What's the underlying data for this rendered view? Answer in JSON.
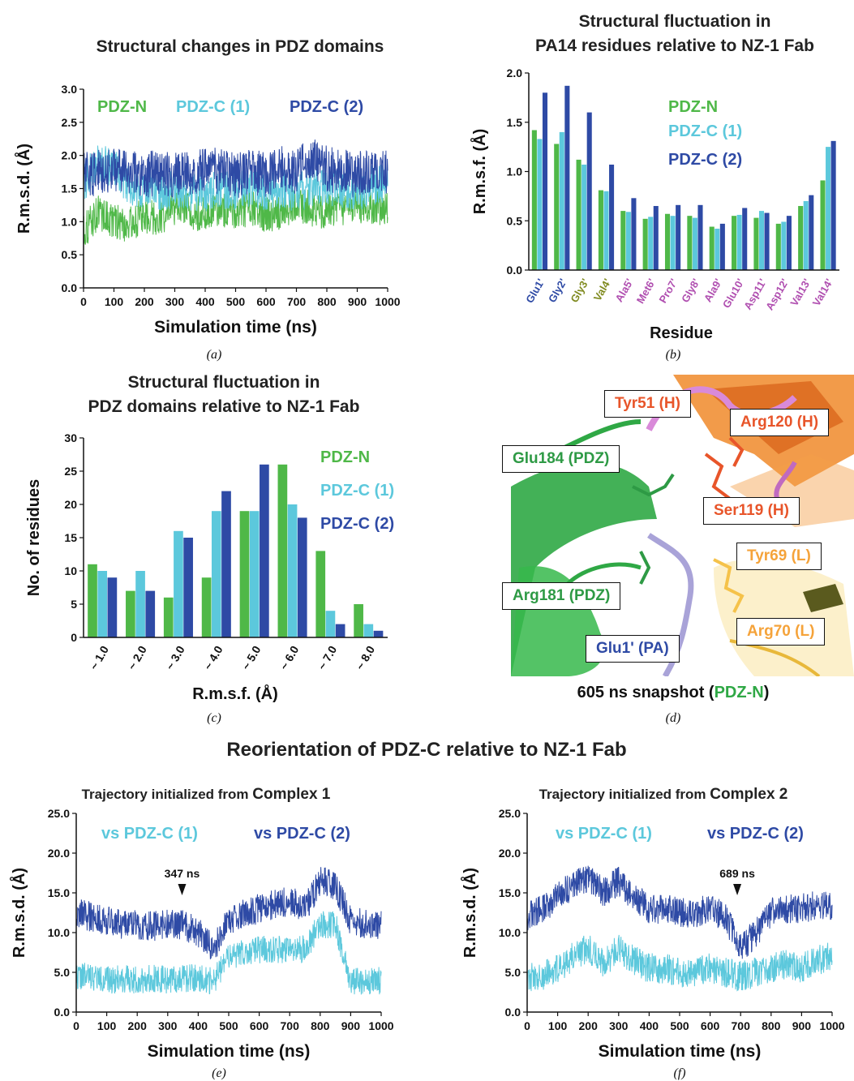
{
  "colors": {
    "pdzn": "#4fb848",
    "pdzc1": "#5cc8dc",
    "pdzc2": "#2e4aa5",
    "heavy": "#e8552a",
    "light": "#f5a33a",
    "pa_blue": "#2e4aa5",
    "pa_olive": "#7f8a1f",
    "pa_magenta": "#b04fb0"
  },
  "panel_captions": [
    "(a)",
    "(b)",
    "(c)",
    "(d)",
    "(e)",
    "(f)"
  ],
  "section_title": "Reorientation of PDZ-C relative to NZ-1 Fab",
  "chart_data": [
    {
      "id": "a",
      "type": "line",
      "title": "Structural changes in PDZ domains",
      "xlabel": "Simulation time (ns)",
      "ylabel": "R.m.s.d. (Å)",
      "xlim": [
        0,
        1000
      ],
      "ylim": [
        0,
        3
      ],
      "xticks": [
        0,
        100,
        200,
        300,
        400,
        500,
        600,
        700,
        800,
        900,
        1000
      ],
      "yticks": [
        "0.0",
        "0.5",
        "1.0",
        "1.5",
        "2.0",
        "2.5",
        "3.0"
      ],
      "legend_position": "top",
      "series": [
        {
          "name": "PDZ-N",
          "color": "#4fb848",
          "x": [
            0,
            50,
            100,
            150,
            200,
            250,
            300,
            350,
            400,
            450,
            500,
            550,
            600,
            650,
            700,
            750,
            800,
            850,
            900,
            950,
            1000
          ],
          "y": [
            0.85,
            1.15,
            1.0,
            0.95,
            1.1,
            1.05,
            1.2,
            1.15,
            1.1,
            1.2,
            1.15,
            1.2,
            1.1,
            1.15,
            1.25,
            1.2,
            1.15,
            1.2,
            1.25,
            1.2,
            1.2
          ]
        },
        {
          "name": "PDZ-C (1)",
          "color": "#5cc8dc",
          "x": [
            0,
            50,
            100,
            150,
            200,
            250,
            300,
            350,
            400,
            450,
            500,
            550,
            600,
            650,
            700,
            750,
            800,
            850,
            900,
            950,
            1000
          ],
          "y": [
            1.6,
            1.9,
            1.8,
            1.55,
            1.5,
            1.45,
            1.5,
            1.45,
            1.45,
            1.5,
            1.45,
            1.5,
            1.45,
            1.5,
            1.45,
            1.5,
            1.55,
            1.5,
            1.45,
            1.55,
            1.6
          ]
        },
        {
          "name": "PDZ-C (2)",
          "color": "#2e4aa5",
          "x": [
            0,
            50,
            100,
            150,
            200,
            250,
            300,
            350,
            400,
            450,
            500,
            550,
            600,
            650,
            700,
            750,
            800,
            850,
            900,
            950,
            1000
          ],
          "y": [
            1.7,
            1.75,
            1.8,
            1.75,
            1.7,
            1.75,
            1.7,
            1.75,
            1.8,
            1.75,
            1.7,
            1.75,
            1.7,
            1.8,
            1.75,
            2.0,
            1.8,
            1.75,
            1.7,
            1.8,
            1.75
          ]
        }
      ]
    },
    {
      "id": "b",
      "type": "bar",
      "title": "Structural fluctuation in\nPA14 residues relative to NZ-1 Fab",
      "xlabel": "Residue",
      "ylabel": "R.m.s.f. (Å)",
      "ylim": [
        0,
        2
      ],
      "yticks": [
        "0.0",
        "0.5",
        "1.0",
        "1.5",
        "2.0"
      ],
      "categories": [
        "Glu1'",
        "Gly2'",
        "Gly3'",
        "Val4'",
        "Ala5'",
        "Met6'",
        "Pro7'",
        "Gly8'",
        "Ala9'",
        "Glu10'",
        "Asp11'",
        "Asp12'",
        "Val13'",
        "Val14'"
      ],
      "category_colors": [
        "#2e4aa5",
        "#2e4aa5",
        "#7f8a1f",
        "#7f8a1f",
        "#b04fb0",
        "#b04fb0",
        "#b04fb0",
        "#b04fb0",
        "#b04fb0",
        "#b04fb0",
        "#b04fb0",
        "#b04fb0",
        "#b04fb0",
        "#b04fb0"
      ],
      "legend_position": "upper-center",
      "series": [
        {
          "name": "PDZ-N",
          "color": "#4fb848",
          "values": [
            1.42,
            1.28,
            1.12,
            0.81,
            0.6,
            0.52,
            0.57,
            0.55,
            0.44,
            0.55,
            0.53,
            0.47,
            0.65,
            0.91
          ]
        },
        {
          "name": "PDZ-C (1)",
          "color": "#5cc8dc",
          "values": [
            1.33,
            1.4,
            1.07,
            0.8,
            0.59,
            0.54,
            0.55,
            0.53,
            0.42,
            0.56,
            0.6,
            0.49,
            0.7,
            1.25
          ]
        },
        {
          "name": "PDZ-C (2)",
          "color": "#2e4aa5",
          "values": [
            1.8,
            1.87,
            1.6,
            1.07,
            0.73,
            0.65,
            0.66,
            0.66,
            0.47,
            0.63,
            0.58,
            0.55,
            0.76,
            1.31
          ]
        }
      ]
    },
    {
      "id": "c",
      "type": "bar",
      "title": "Structural fluctuation in\nPDZ domains relative to NZ-1 Fab",
      "xlabel": "R.m.s.f. (Å)",
      "ylabel": "No. of residues",
      "ylim": [
        0,
        30
      ],
      "yticks": [
        "0",
        "5",
        "10",
        "15",
        "20",
        "25",
        "30"
      ],
      "categories": [
        "~ 1.0",
        "~ 2.0",
        "~ 3.0",
        "~ 4.0",
        "~ 5.0",
        "~ 6.0",
        "~ 7.0",
        "~ 8.0"
      ],
      "legend_position": "right",
      "series": [
        {
          "name": "PDZ-N",
          "color": "#4fb848",
          "values": [
            11,
            7,
            6,
            9,
            19,
            26,
            13,
            5
          ]
        },
        {
          "name": "PDZ-C (1)",
          "color": "#5cc8dc",
          "values": [
            10,
            10,
            16,
            19,
            19,
            20,
            4,
            2
          ]
        },
        {
          "name": "PDZ-C (2)",
          "color": "#2e4aa5",
          "values": [
            9,
            7,
            15,
            22,
            26,
            18,
            2,
            1
          ]
        }
      ]
    },
    {
      "id": "e",
      "type": "line",
      "title_prefix": "Trajectory initialized from ",
      "title_emph": "Complex 1",
      "xlabel": "Simulation time (ns)",
      "ylabel": "R.m.s.d. (Å)",
      "xlim": [
        0,
        1000
      ],
      "ylim": [
        0,
        25
      ],
      "xticks": [
        0,
        100,
        200,
        300,
        400,
        500,
        600,
        700,
        800,
        900,
        1000
      ],
      "yticks": [
        "0.0",
        "5.0",
        "10.0",
        "15.0",
        "20.0",
        "25.0"
      ],
      "annotation": {
        "text": "347 ns",
        "x": 347
      },
      "legend_position": "top",
      "series": [
        {
          "name": "vs PDZ-C (1)",
          "color": "#5cc8dc",
          "x": [
            0,
            50,
            100,
            150,
            200,
            250,
            300,
            350,
            400,
            450,
            500,
            550,
            600,
            650,
            700,
            750,
            800,
            850,
            900,
            950,
            1000
          ],
          "y": [
            4.5,
            4.5,
            4.0,
            4.2,
            4.0,
            4.3,
            4.0,
            4.2,
            4.3,
            3.8,
            7.0,
            7.5,
            7.8,
            8.0,
            7.5,
            8.0,
            11.0,
            11.0,
            4.0,
            3.8,
            4.0
          ]
        },
        {
          "name": "vs PDZ-C (2)",
          "color": "#2e4aa5",
          "x": [
            0,
            50,
            100,
            150,
            200,
            250,
            300,
            350,
            400,
            450,
            500,
            550,
            600,
            650,
            700,
            750,
            800,
            850,
            900,
            950,
            1000
          ],
          "y": [
            12.5,
            12.0,
            11.5,
            11.0,
            11.0,
            10.8,
            11.0,
            11.0,
            10.0,
            8.0,
            11.5,
            12.5,
            13.0,
            13.5,
            14.0,
            13.0,
            16.5,
            16.0,
            11.5,
            11.0,
            11.0
          ]
        }
      ]
    },
    {
      "id": "f",
      "type": "line",
      "title_prefix": "Trajectory initialized from ",
      "title_emph": "Complex 2",
      "xlabel": "Simulation time (ns)",
      "ylabel": "R.m.s.d. (Å)",
      "xlim": [
        0,
        1000
      ],
      "ylim": [
        0,
        25
      ],
      "xticks": [
        0,
        100,
        200,
        300,
        400,
        500,
        600,
        700,
        800,
        900,
        1000
      ],
      "yticks": [
        "0.0",
        "5.0",
        "10.0",
        "15.0",
        "20.0",
        "25.0"
      ],
      "annotation": {
        "text": "689 ns",
        "x": 689
      },
      "legend_position": "top",
      "series": [
        {
          "name": "vs PDZ-C (1)",
          "color": "#5cc8dc",
          "x": [
            0,
            50,
            100,
            150,
            200,
            250,
            300,
            350,
            400,
            450,
            500,
            550,
            600,
            650,
            700,
            750,
            800,
            850,
            900,
            950,
            1000
          ],
          "y": [
            4.5,
            4.5,
            5.5,
            7.0,
            8.0,
            6.0,
            8.0,
            6.5,
            5.5,
            5.5,
            5.0,
            5.0,
            5.5,
            5.0,
            4.5,
            5.0,
            5.5,
            6.0,
            5.5,
            6.5,
            7.0
          ]
        },
        {
          "name": "vs PDZ-C (2)",
          "color": "#2e4aa5",
          "x": [
            0,
            50,
            100,
            150,
            200,
            250,
            300,
            350,
            400,
            450,
            500,
            550,
            600,
            650,
            700,
            750,
            800,
            850,
            900,
            950,
            1000
          ],
          "y": [
            12.0,
            13.0,
            14.5,
            16.0,
            17.0,
            15.0,
            16.5,
            14.5,
            13.0,
            13.0,
            12.5,
            12.5,
            13.0,
            12.0,
            8.0,
            10.0,
            12.5,
            13.0,
            13.0,
            13.5,
            13.5
          ]
        }
      ]
    }
  ],
  "structure_panel": {
    "caption_prefix": "605 ns snapshot (",
    "caption_emph": "PDZ-N",
    "caption_suffix": ")",
    "labels": [
      {
        "text": "Tyr51 (H)",
        "color": "#e8552a"
      },
      {
        "text": "Arg120 (H)",
        "color": "#e8552a"
      },
      {
        "text": "Glu184 (PDZ)",
        "color": "#2e9a45"
      },
      {
        "text": "Ser119 (H)",
        "color": "#e8552a"
      },
      {
        "text": "Tyr69 (L)",
        "color": "#f5a33a"
      },
      {
        "text": "Arg181 (PDZ)",
        "color": "#2e9a45"
      },
      {
        "text": "Arg70 (L)",
        "color": "#f5a33a"
      },
      {
        "text": "Glu1' (PA)",
        "color": "#2e4aa5"
      }
    ]
  }
}
